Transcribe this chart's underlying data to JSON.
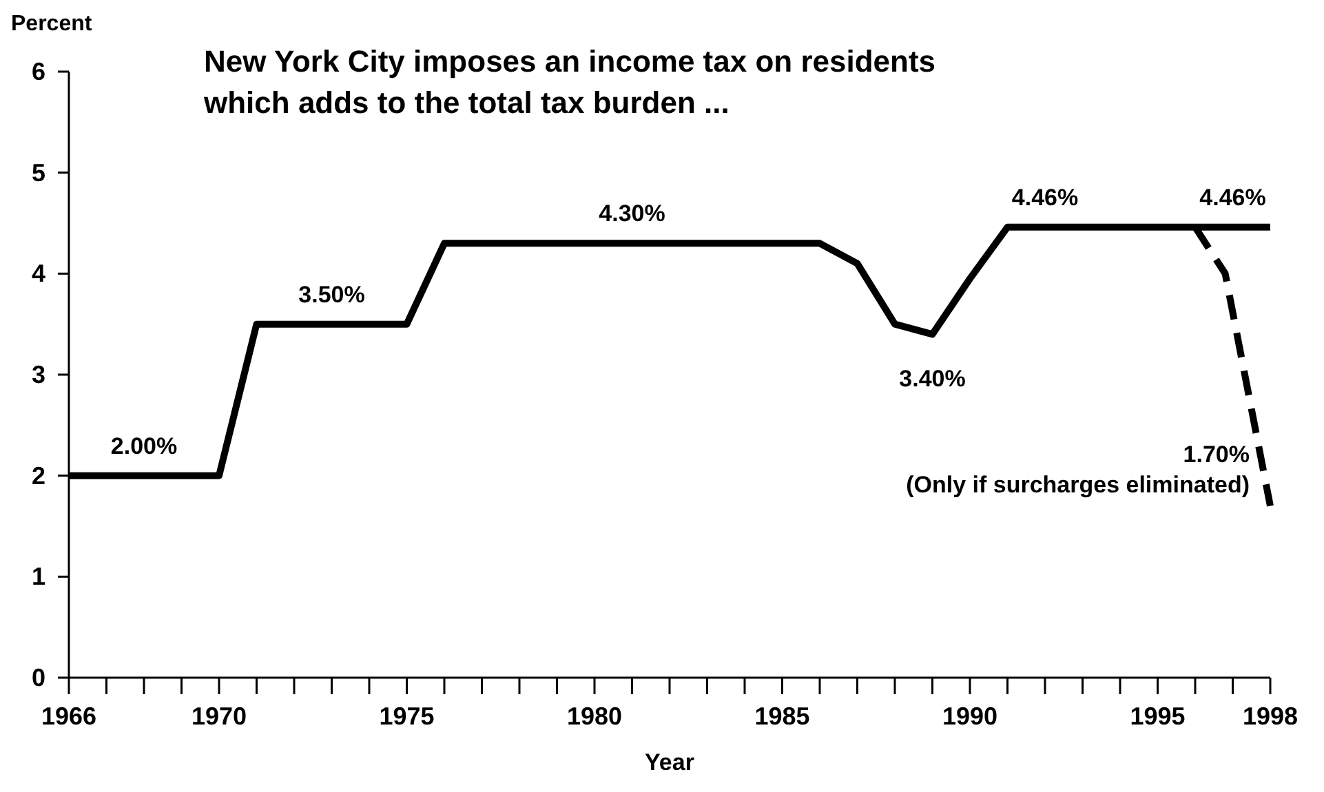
{
  "chart_data": {
    "type": "line",
    "title": "New York City imposes an income tax on residents\nwhich adds to the total tax burden ...",
    "xlabel": "Year",
    "ylabel": "Percent",
    "series": [
      {
        "color": "#000000",
        "line_style": "solid",
        "x": [
          1966,
          1970,
          1971,
          1975,
          1976,
          1986,
          1987,
          1988,
          1989,
          1990,
          1991,
          1998
        ],
        "values": [
          2.0,
          2.0,
          3.5,
          3.5,
          4.3,
          4.3,
          4.1,
          3.5,
          3.4,
          3.95,
          4.46,
          4.46
        ]
      },
      {
        "color": "#000000",
        "line_style": "dashed",
        "x": [
          1996,
          1996.8,
          1998
        ],
        "values": [
          4.46,
          4.0,
          1.7
        ]
      }
    ],
    "xlim": [
      1966,
      1998
    ],
    "xticks": [
      1966,
      {
        "value": 1967,
        "label": null
      },
      {
        "value": 1968,
        "label": null
      },
      {
        "value": 1969,
        "label": null
      },
      1970,
      {
        "value": 1971,
        "label": null
      },
      {
        "value": 1972,
        "label": null
      },
      {
        "value": 1973,
        "label": null
      },
      {
        "value": 1974,
        "label": null
      },
      1975,
      {
        "value": 1976,
        "label": null
      },
      {
        "value": 1977,
        "label": null
      },
      {
        "value": 1978,
        "label": null
      },
      {
        "value": 1979,
        "label": null
      },
      1980,
      {
        "value": 1981,
        "label": null
      },
      {
        "value": 1982,
        "label": null
      },
      {
        "value": 1983,
        "label": null
      },
      {
        "value": 1984,
        "label": null
      },
      1985,
      {
        "value": 1986,
        "label": null
      },
      {
        "value": 1987,
        "label": null
      },
      {
        "value": 1988,
        "label": null
      },
      {
        "value": 1989,
        "label": null
      },
      1990,
      {
        "value": 1991,
        "label": null
      },
      {
        "value": 1992,
        "label": null
      },
      {
        "value": 1993,
        "label": null
      },
      {
        "value": 1994,
        "label": null
      },
      1995,
      {
        "value": 1996,
        "label": null
      },
      {
        "value": 1997,
        "label": null
      },
      1998
    ],
    "ylim": [
      0,
      6
    ],
    "yticks": [
      0,
      1,
      2,
      3,
      4,
      5,
      6
    ],
    "grid": false,
    "marker": "none",
    "annotations": [
      {
        "text": "2.00%",
        "x": 1968,
        "y": 2.0
      },
      {
        "text": "3.50%",
        "x": 1973,
        "y": 3.5
      },
      {
        "text": "4.30%",
        "x": 1981,
        "y": 4.3
      },
      {
        "text": "3.40%",
        "x": 1989,
        "y": 3.4
      },
      {
        "text": "4.46%",
        "x": 1992,
        "y": 4.46
      },
      {
        "text": "4.46%",
        "x": 1997,
        "y": 4.46
      },
      {
        "text": "1.70%",
        "x": 1998,
        "y": 1.7
      },
      "(Only if surcharges eliminated)"
    ]
  }
}
